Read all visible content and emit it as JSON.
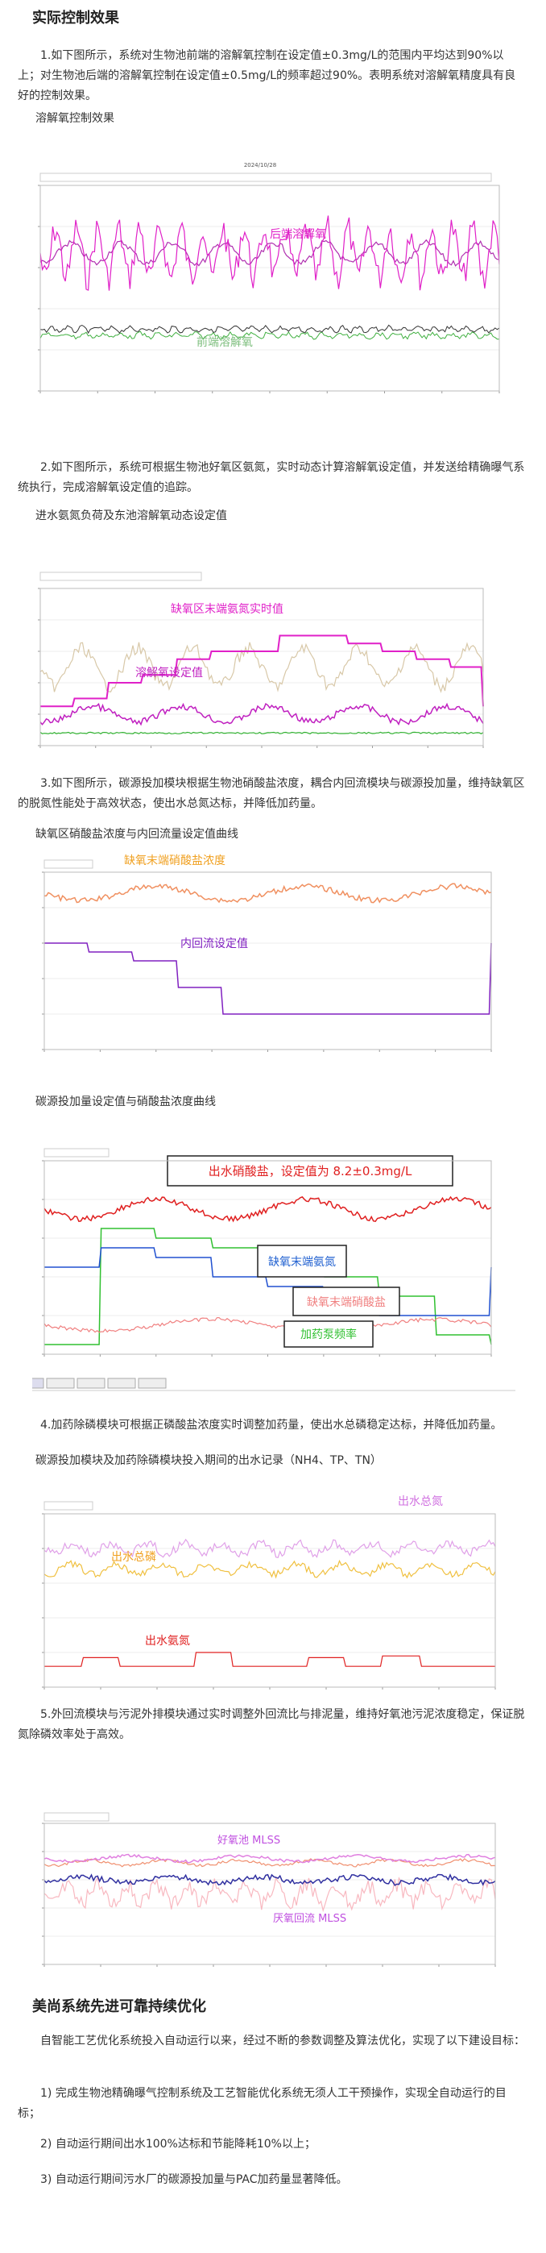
{
  "heading": "实际控制效果",
  "paragraph_1": "1.如下图所示，系统对生物池前端的溶解氧控制在设定值±0.3mg/L的范围内平均达到90%以上；对生物池后端的溶解氧控制在设定值±0.5mg/L的频率超过90%。表明系统对溶解氧精度具有良好的控制效果。",
  "caption_1": "溶解氧控制效果",
  "figure_1": {
    "title": "2024/10/28",
    "labels": [
      "后端溶解氧",
      "前端溶解氧"
    ]
  },
  "paragraph_2": "2.如下图所示，系统可根据生物池好氧区氨氮，实时动态计算溶解氧设定值，并发送给精确曝气系统执行，完成溶解氧设定值的追踪。",
  "caption_2": "进水氨氮负荷及东池溶解氧动态设定值",
  "figure_2": {
    "labels": [
      "缺氧区末端氨氮实时值",
      "溶解氧设定值"
    ]
  },
  "paragraph_3": "3.如下图所示，碳源投加模块根据生物池硝酸盐浓度，耦合内回流模块与碳源投加量，维持缺氧区的脱氮性能处于高效状态，使出水总氮达标，并降低加药量。",
  "caption_3": "缺氧区硝酸盐浓度与内回流量设定值曲线",
  "figure_3": {
    "labels": [
      "缺氧末端硝酸盐浓度",
      "内回流设定值"
    ]
  },
  "caption_4": "碳源投加量设定值与硝酸盐浓度曲线",
  "figure_4": {
    "labels": [
      "出水硝酸盐，设定值为 8.2±0.3mg/L",
      "缺氧末端氨氮",
      "缺氧末端硝酸盐",
      "加药泵频率"
    ]
  },
  "paragraph_4": "4.加药除磷模块可根据正磷酸盐浓度实时调整加药量，使出水总磷稳定达标，并降低加药量。",
  "caption_5": "碳源投加模块及加药除磷模块投入期间的出水记录（NH4、TP、TN）",
  "figure_5": {
    "labels": [
      "出水总氮",
      "出水总磷",
      "出水氨氮"
    ]
  },
  "paragraph_5": "5.外回流模块与污泥外排模块通过实时调整外回流比与排泥量，维持好氧池污泥浓度稳定，保证脱氮除磷效率处于高效。",
  "figure_6": {
    "labels": [
      "好氧池 MLSS",
      "厌氧回流 MLSS"
    ]
  },
  "heading_2": "美尚系统先进可靠持续优化",
  "paragraph_6": "自智能工艺优化系统投入自动运行以来，经过不断的参数调整及算法优化，实现了以下建设目标：",
  "list": [
    "1) 完成生物池精确曝气控制系统及工艺智能优化系统无须人工干预操作，实现全自动运行的目标；",
    "2) 自动运行期间出水100%达标和节能降耗10%以上；",
    "3) 自动运行期间污水厂的碳源投加量与PAC加药量显著降低。"
  ]
}
